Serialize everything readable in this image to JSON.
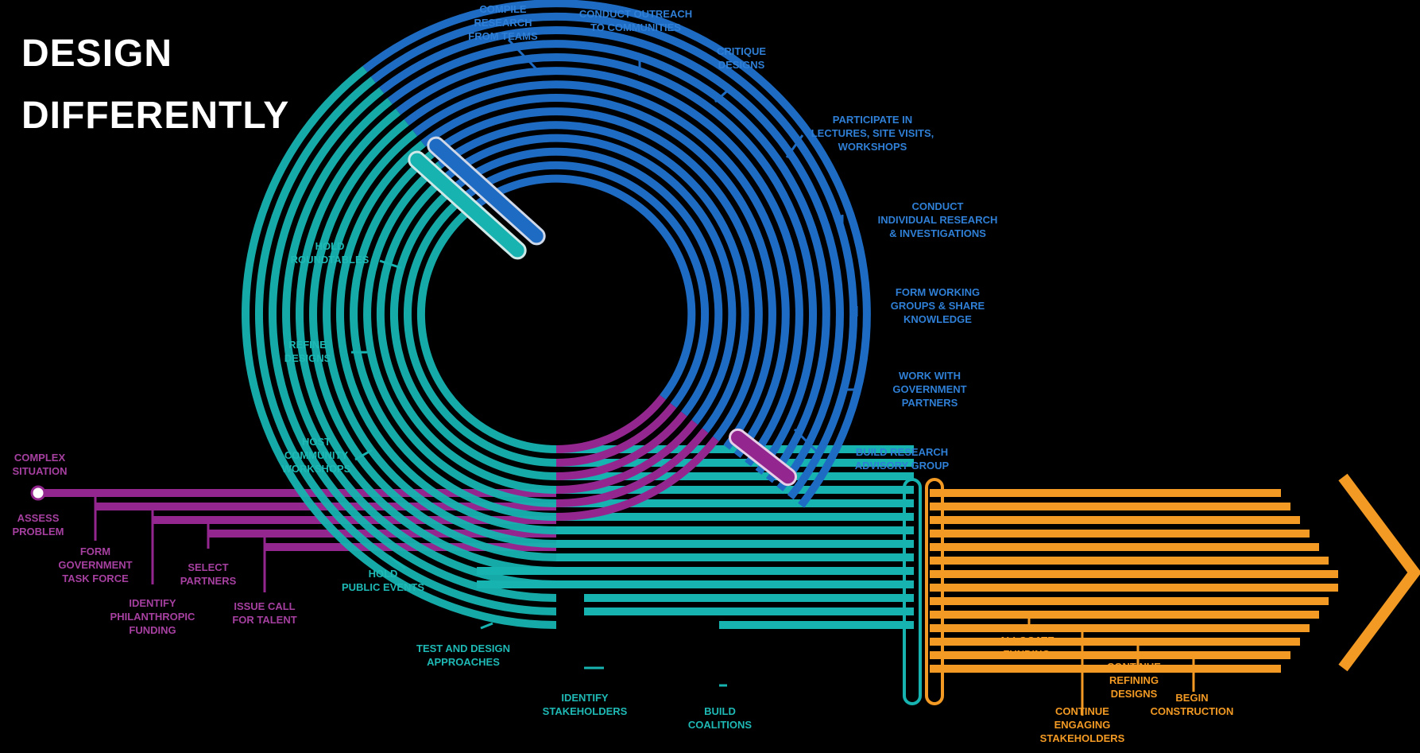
{
  "title": {
    "line1": "DESIGN",
    "line2": "DIFFERENTLY"
  },
  "colors": {
    "background": "#000000",
    "title": "#ffffff",
    "phase_magenta": "#93278f",
    "phase_teal": "#16b3b0",
    "phase_blue": "#1e6bc4",
    "phase_orange": "#f39a24",
    "label_magenta": "#a640a0",
    "label_teal": "#1fb9b5",
    "label_blue": "#2f7fd6",
    "label_orange": "#f39a24"
  },
  "labels": {
    "complex_situation": [
      "COMPLEX",
      "SITUATION"
    ],
    "assess_problem": [
      "ASSESS",
      "PROBLEM"
    ],
    "form_task_force": [
      "FORM",
      "GOVERNMENT",
      "TASK FORCE"
    ],
    "identify_funding": [
      "IDENTIFY",
      "PHILANTHROPIC",
      "FUNDING"
    ],
    "select_partners": [
      "SELECT",
      "PARTNERS"
    ],
    "issue_call": [
      "ISSUE CALL",
      "FOR TALENT"
    ],
    "hold_public_events": [
      "HOLD",
      "PUBLIC EVENTS"
    ],
    "host_workshops": [
      "HOST",
      "COMMUNITY",
      "WORKSHOPS"
    ],
    "refine_designs": [
      "REFINE",
      "DESIGNS"
    ],
    "hold_roundtables": [
      "HOLD",
      "ROUNDTABLES"
    ],
    "compile_research": [
      "COMPILE",
      "RESEARCH",
      "FROM TEAMS"
    ],
    "conduct_outreach": [
      "CONDUCT OUTREACH",
      "TO COMMUNITIES"
    ],
    "critique_designs": [
      "CRITIQUE",
      "DESIGNS"
    ],
    "participate_lectures": [
      "PARTICIPATE IN",
      "LECTURES, SITE VISITS,",
      "WORKSHOPS"
    ],
    "conduct_research": [
      "CONDUCT",
      "INDIVIDUAL RESEARCH",
      "& INVESTIGATIONS"
    ],
    "form_groups": [
      "FORM WORKING",
      "GROUPS & SHARE",
      "KNOWLEDGE"
    ],
    "work_government": [
      "WORK WITH",
      "GOVERNMENT",
      "PARTNERS"
    ],
    "build_advisory": [
      "BUILD RESEARCH",
      "ADVISORY GROUP"
    ],
    "test_design": [
      "TEST AND DESIGN",
      "APPROACHES"
    ],
    "identify_stakeholders": [
      "IDENTIFY",
      "STAKEHOLDERS"
    ],
    "build_coalitions": [
      "BUILD",
      "COALITIONS"
    ],
    "allocate_funding": [
      "ALLOCATE",
      "FUNDING"
    ],
    "continue_engaging": [
      "CONTINUE",
      "ENGAGING",
      "STAKEHOLDERS"
    ],
    "continue_refining": [
      "CONTINUE",
      "REFINING",
      "DESIGNS"
    ],
    "begin_construction": [
      "BEGIN",
      "CONSTRUCTION"
    ]
  }
}
